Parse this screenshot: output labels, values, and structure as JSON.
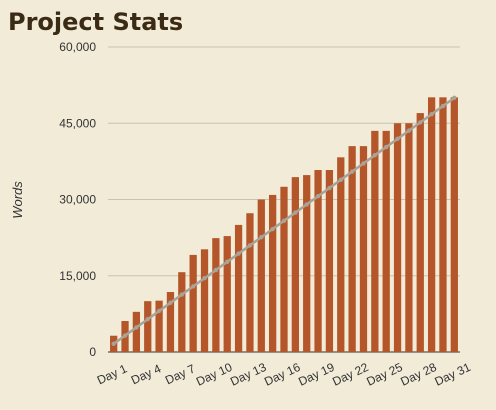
{
  "chart_data": {
    "type": "bar",
    "title": "Project Stats",
    "y_label": "Words",
    "categories": [
      "Day 1",
      null,
      null,
      "Day 4",
      null,
      null,
      "Day 7",
      null,
      null,
      "Day 10",
      null,
      null,
      "Day 13",
      null,
      null,
      "Day 16",
      null,
      null,
      "Day 19",
      null,
      null,
      "Day 22",
      null,
      null,
      "Day 25",
      null,
      null,
      "Day 28",
      null,
      null,
      "Day 31"
    ],
    "series": [
      {
        "type": "bar",
        "color": "#b4562a",
        "values": [
          3200,
          6100,
          7900,
          10000,
          10100,
          11800,
          15700,
          19100,
          20200,
          22400,
          22800,
          25000,
          27300,
          30000,
          30900,
          32500,
          34400,
          34800,
          35800,
          35800,
          38300,
          40500,
          40500,
          43500,
          43500,
          45000,
          45000,
          47000,
          50100,
          50100,
          50100
        ]
      },
      {
        "type": "line",
        "color": "#a9a296",
        "values": [
          1613,
          3226,
          4839,
          6452,
          8065,
          9677,
          11290,
          12903,
          14516,
          16129,
          17742,
          19355,
          20968,
          22581,
          24194,
          25806,
          27419,
          29032,
          30645,
          32258,
          33871,
          35484,
          37097,
          38710,
          40323,
          41935,
          43548,
          45161,
          46774,
          48387,
          50000
        ]
      }
    ],
    "ylim": [
      0,
      60000
    ],
    "yticks": [
      0,
      {
        "value": 15000,
        "label": "15,000"
      },
      {
        "value": 30000,
        "label": "30,000"
      },
      {
        "value": 45000,
        "label": "45,000"
      },
      {
        "value": 60000,
        "label": "60,000"
      }
    ],
    "grid": true
  }
}
